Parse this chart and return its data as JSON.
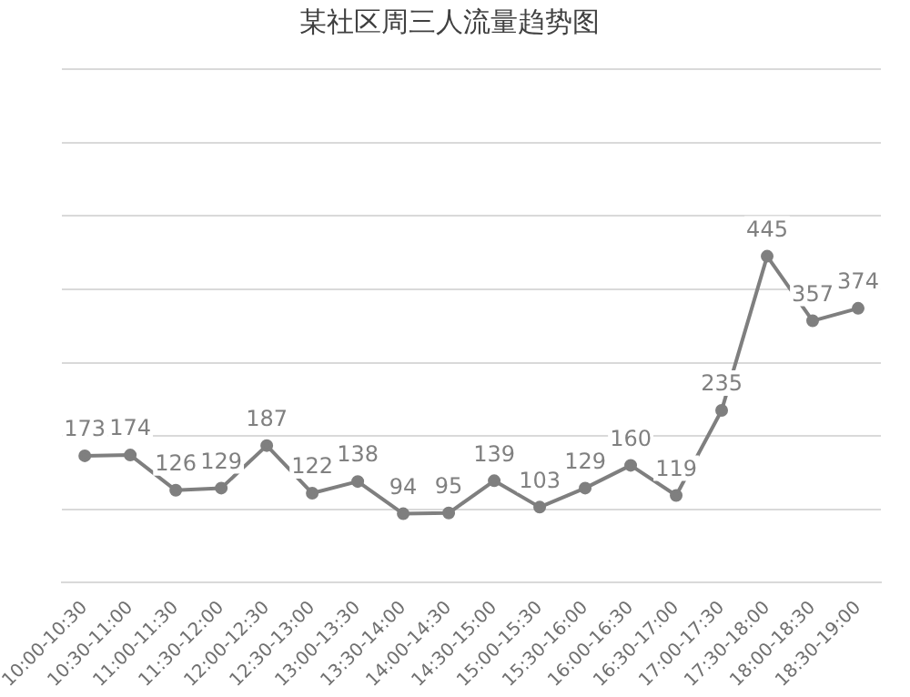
{
  "chart_data": {
    "type": "line",
    "title": "某社区周三人流量趋势图",
    "categories": [
      "10:00-10:30",
      "10:30-11:00",
      "11:00-11:30",
      "11:30-12:00",
      "12:00-12:30",
      "12:30-13:00",
      "13:00-13:30",
      "13:30-14:00",
      "14:00-14:30",
      "14:30-15:00",
      "15:00-15:30",
      "15:30-16:00",
      "16:00-16:30",
      "16:30-17:00",
      "17:00-17:30",
      "17:30-18:00",
      "18:00-18:30",
      "18:30-19:00"
    ],
    "series": [
      {
        "color": "#7f7f7f",
        "values": [
          173,
          174,
          126,
          129,
          187,
          122,
          138,
          94,
          95,
          139,
          103,
          129,
          160,
          119,
          235,
          445,
          357,
          374
        ]
      }
    ],
    "ylim": [
      0,
      700
    ],
    "yticks": [
      {
        "value": 0,
        "label": null
      },
      {
        "value": 100,
        "label": null
      },
      {
        "value": 200,
        "label": null
      },
      {
        "value": 300,
        "label": null
      },
      {
        "value": 400,
        "label": null
      },
      {
        "value": 500,
        "label": null
      },
      {
        "value": 600,
        "label": null
      },
      {
        "value": 700,
        "label": null
      }
    ],
    "tick_labels": "x",
    "grid": "y",
    "legend": false,
    "marker": "circle",
    "line_style": "solid",
    "data_labels": true
  }
}
